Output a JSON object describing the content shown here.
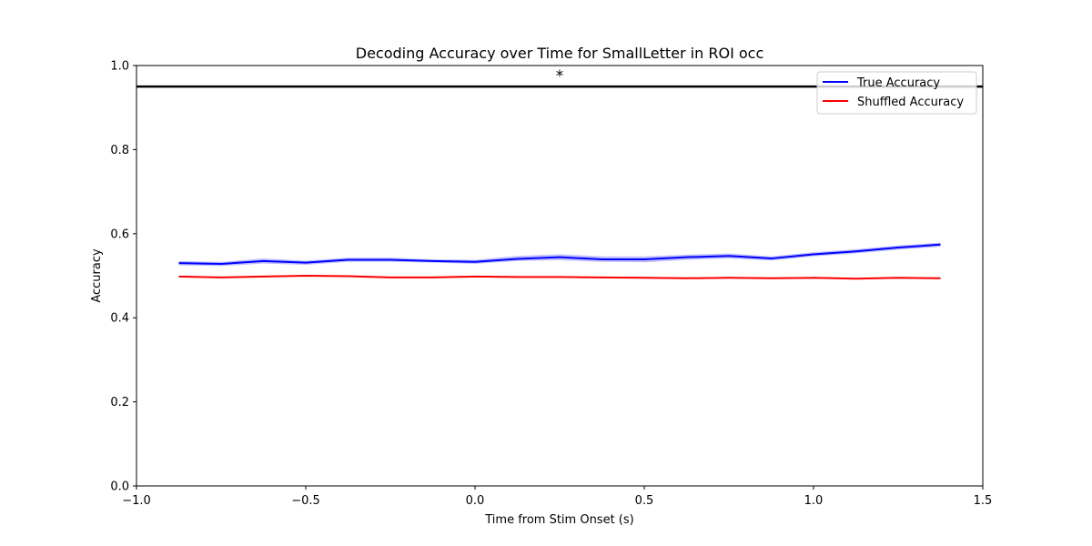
{
  "chart_data": {
    "type": "line",
    "title": "Decoding Accuracy over Time for SmallLetter in ROI occ",
    "xlabel": "Time from Stim Onset (s)",
    "ylabel": "Accuracy",
    "xlim": [
      -1.0,
      1.5
    ],
    "ylim": [
      0.0,
      1.0
    ],
    "xticks": [
      -1.0,
      -0.5,
      0.0,
      0.5,
      1.0,
      1.5
    ],
    "xtick_labels": [
      "−1.0",
      "−0.5",
      "0.0",
      "0.5",
      "1.0",
      "1.5"
    ],
    "yticks": [
      0.0,
      0.2,
      0.4,
      0.6,
      0.8,
      1.0
    ],
    "ytick_labels": [
      "0.0",
      "0.2",
      "0.4",
      "0.6",
      "0.8",
      "1.0"
    ],
    "grid": false,
    "legend_position": "top-right",
    "x": [
      -0.875,
      -0.75,
      -0.625,
      -0.5,
      -0.375,
      -0.25,
      -0.125,
      0.0,
      0.125,
      0.25,
      0.375,
      0.5,
      0.625,
      0.75,
      0.875,
      1.0,
      1.125,
      1.25,
      1.375
    ],
    "series": [
      {
        "name": "True Accuracy",
        "color": "#0000ff",
        "band_color": "#0000ff",
        "values": [
          0.53,
          0.528,
          0.535,
          0.531,
          0.538,
          0.538,
          0.535,
          0.533,
          0.54,
          0.544,
          0.539,
          0.539,
          0.544,
          0.547,
          0.541,
          0.551,
          0.558,
          0.567,
          0.574
        ],
        "lower": [
          0.525,
          0.523,
          0.529,
          0.526,
          0.533,
          0.533,
          0.531,
          0.528,
          0.535,
          0.537,
          0.533,
          0.532,
          0.538,
          0.541,
          0.536,
          0.546,
          0.553,
          0.562,
          0.569
        ],
        "upper": [
          0.535,
          0.533,
          0.541,
          0.536,
          0.543,
          0.543,
          0.539,
          0.538,
          0.547,
          0.551,
          0.546,
          0.546,
          0.55,
          0.553,
          0.546,
          0.556,
          0.563,
          0.572,
          0.579
        ]
      },
      {
        "name": "Shuffled Accuracy",
        "color": "#ff0000",
        "band_color": "#ff0000",
        "values": [
          0.498,
          0.496,
          0.498,
          0.5,
          0.499,
          0.496,
          0.496,
          0.498,
          0.497,
          0.497,
          0.496,
          0.495,
          0.494,
          0.495,
          0.494,
          0.495,
          0.493,
          0.495,
          0.494
        ],
        "lower": [
          0.496,
          0.494,
          0.496,
          0.498,
          0.497,
          0.494,
          0.494,
          0.496,
          0.495,
          0.495,
          0.494,
          0.493,
          0.492,
          0.493,
          0.492,
          0.493,
          0.491,
          0.493,
          0.492
        ],
        "upper": [
          0.5,
          0.498,
          0.5,
          0.502,
          0.501,
          0.498,
          0.498,
          0.5,
          0.499,
          0.499,
          0.498,
          0.497,
          0.496,
          0.497,
          0.496,
          0.497,
          0.495,
          0.497,
          0.496
        ]
      }
    ],
    "reference_line": {
      "y": 0.95,
      "color": "#000000"
    },
    "annotations": [
      {
        "text": "*",
        "x": 0.25,
        "y": 0.98
      }
    ]
  }
}
